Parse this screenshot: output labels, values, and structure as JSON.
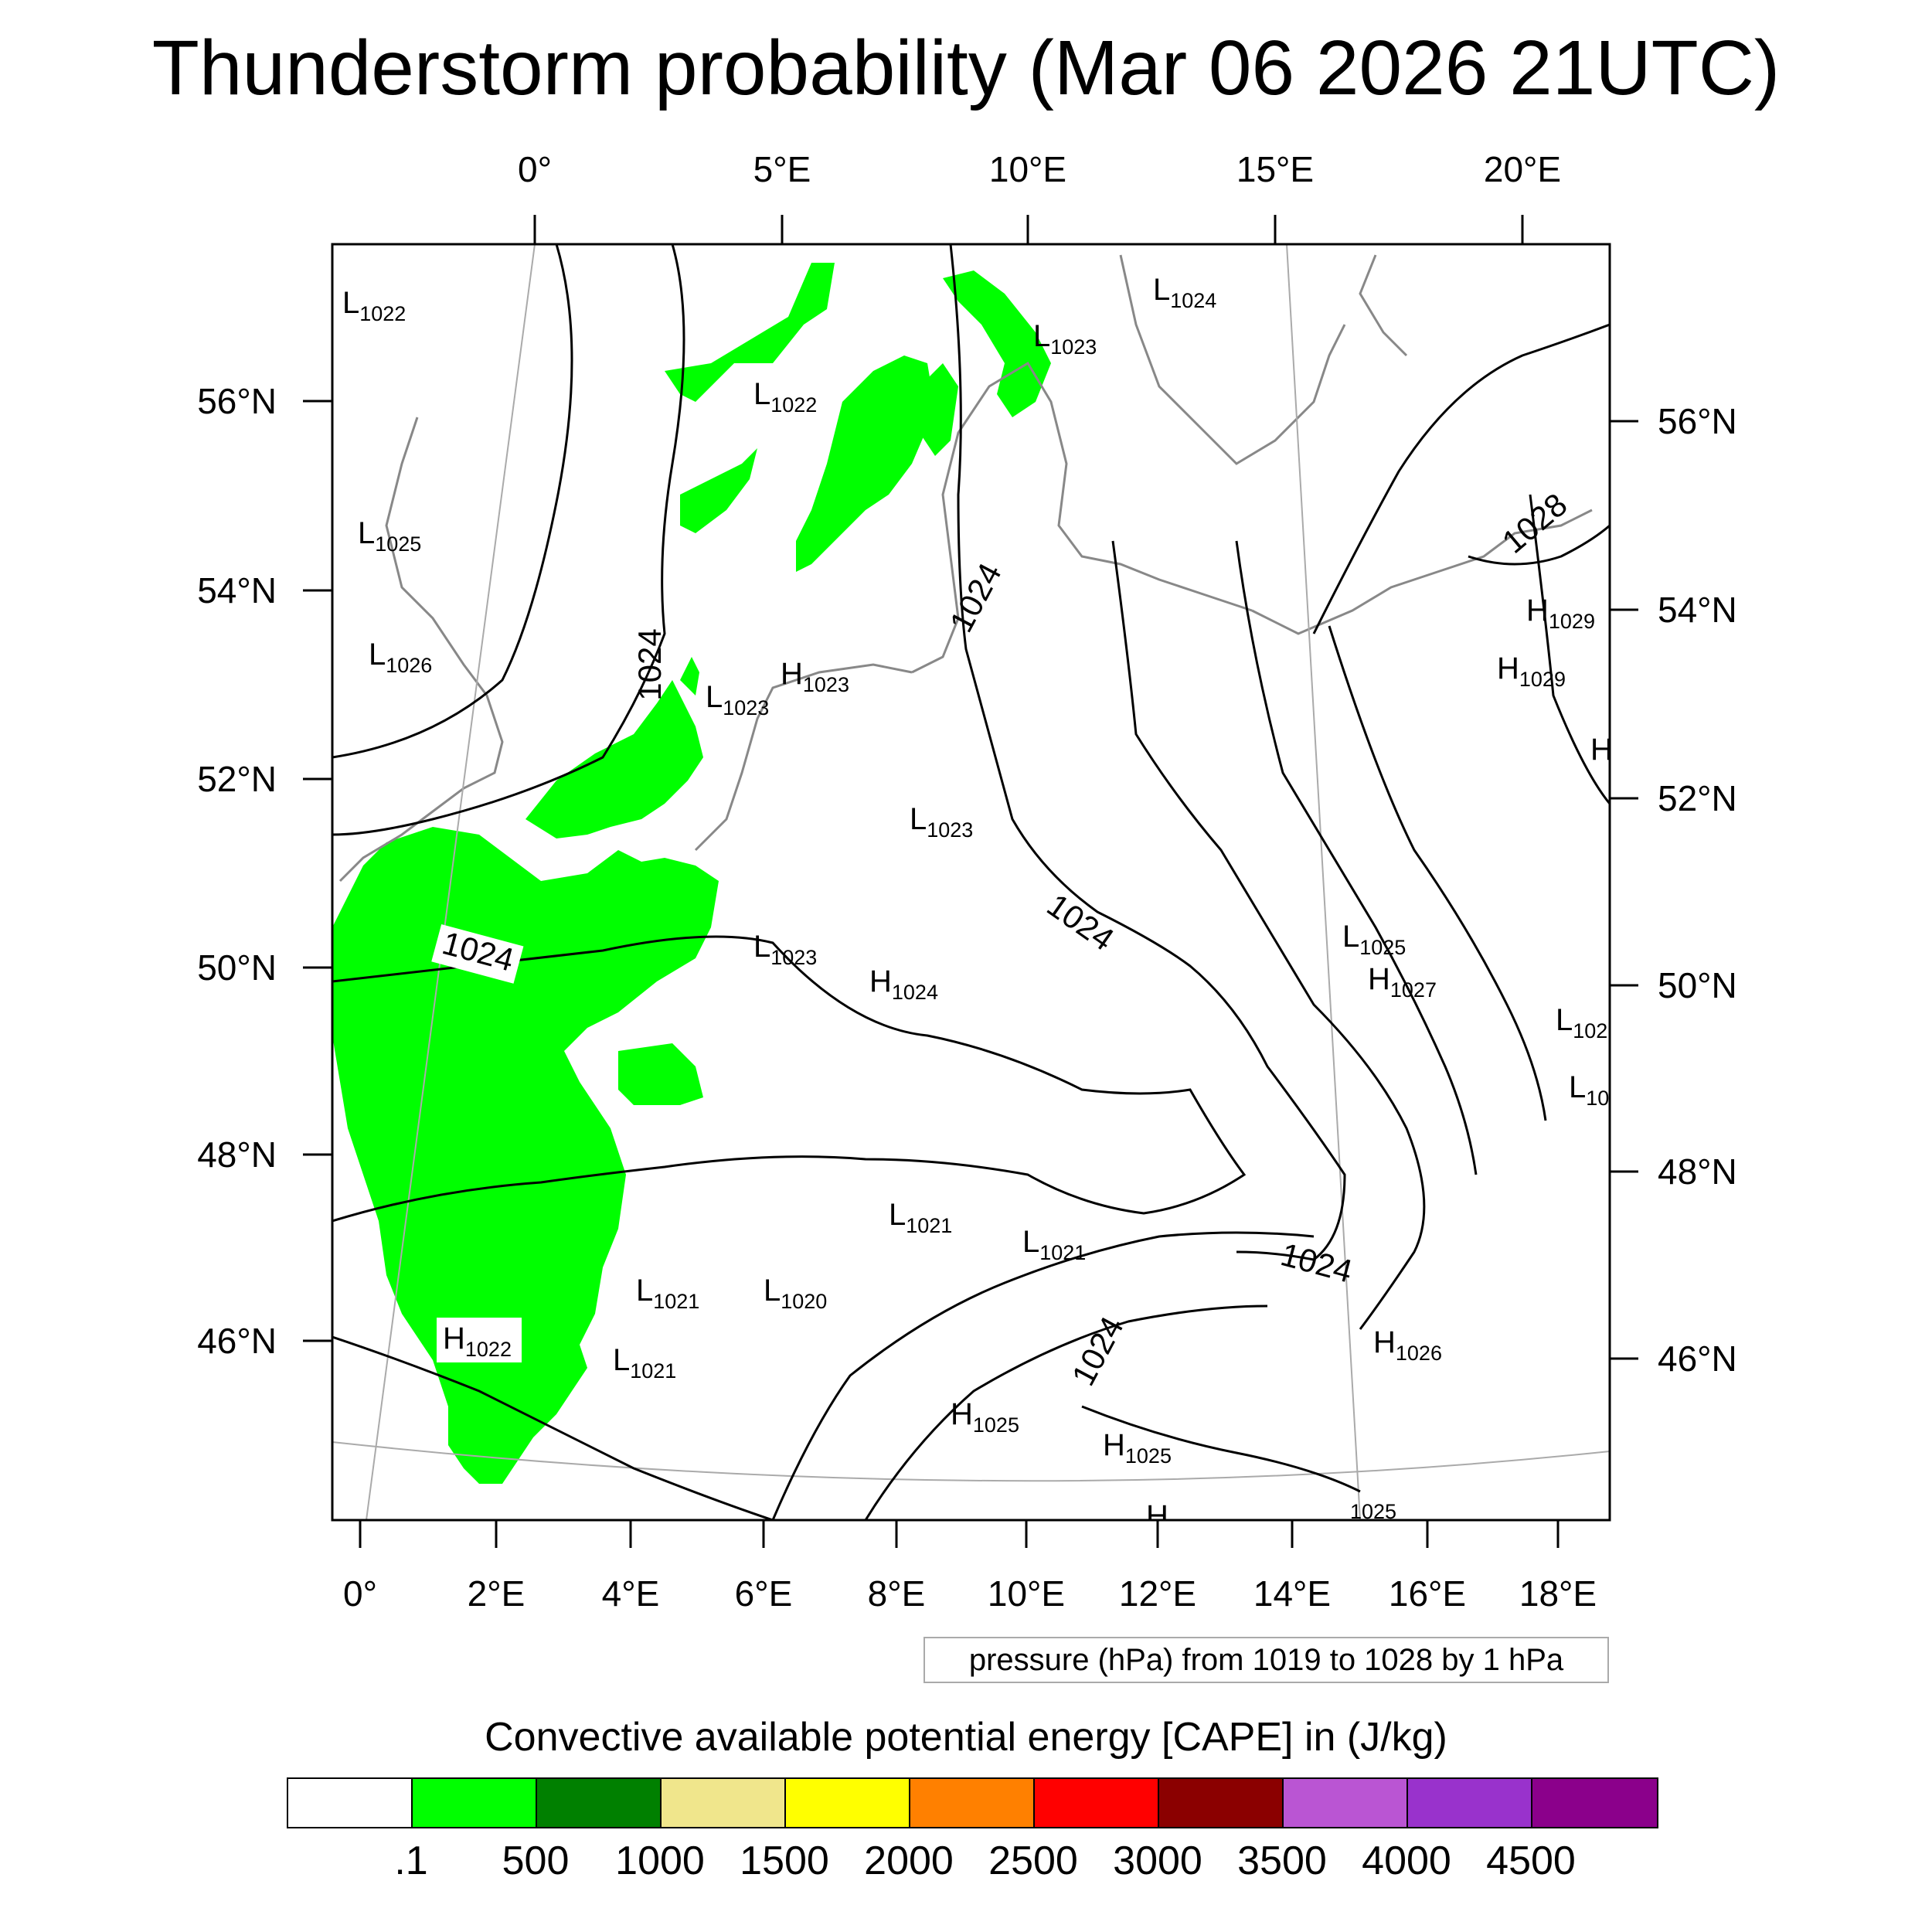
{
  "title": "Thunderstorm probability (Mar 06 2026 21UTC)",
  "map": {
    "top_lon_labels": [
      "0°",
      "5°E",
      "10°E",
      "15°E",
      "20°E"
    ],
    "bottom_lon_labels": [
      "0°",
      "2°E",
      "4°E",
      "6°E",
      "8°E",
      "10°E",
      "12°E",
      "14°E",
      "16°E",
      "18°E"
    ],
    "left_lat_labels": [
      "56°N",
      "54°N",
      "52°N",
      "50°N",
      "48°N",
      "46°N"
    ],
    "right_lat_labels": [
      "56°N",
      "54°N",
      "52°N",
      "50°N",
      "48°N",
      "46°N"
    ],
    "contour_labels": [
      "1024",
      "1024",
      "1024",
      "1024",
      "1024",
      "1024",
      "1028"
    ],
    "pressure_centers": [
      {
        "type": "L",
        "value": "1022"
      },
      {
        "type": "L",
        "value": "1024"
      },
      {
        "type": "L",
        "value": "1023"
      },
      {
        "type": "L",
        "value": "1022"
      },
      {
        "type": "L",
        "value": "1025"
      },
      {
        "type": "L",
        "value": "1026"
      },
      {
        "type": "H",
        "value": "1023"
      },
      {
        "type": "L",
        "value": "1023"
      },
      {
        "type": "H",
        "value": "1029"
      },
      {
        "type": "H",
        "value": "1029"
      },
      {
        "type": "L",
        "value": "1023"
      },
      {
        "type": "L",
        "value": "1023"
      },
      {
        "type": "H",
        "value": "1024"
      },
      {
        "type": "L",
        "value": "1025"
      },
      {
        "type": "H",
        "value": "1027"
      },
      {
        "type": "L",
        "value": "102"
      },
      {
        "type": "L",
        "value": "10"
      },
      {
        "type": "L",
        "value": "1021"
      },
      {
        "type": "L",
        "value": "1021"
      },
      {
        "type": "L",
        "value": "1021"
      },
      {
        "type": "L",
        "value": "1020"
      },
      {
        "type": "H",
        "value": "1022"
      },
      {
        "type": "L",
        "value": "1021"
      },
      {
        "type": "H",
        "value": "1026"
      },
      {
        "type": "H",
        "value": "1025"
      },
      {
        "type": "H",
        "value": "1025"
      },
      {
        "type": "H",
        "value": ""
      },
      {
        "type": "",
        "value": "1025"
      },
      {
        "type": "H",
        "value": ""
      }
    ],
    "colors": {
      "cape_fill": "#00ff00",
      "contour": "#000000",
      "coastline": "#888888",
      "graticule": "#aaaaaa"
    }
  },
  "pressure_note": "pressure (hPa) from 1019 to 1028 by 1 hPa",
  "legend": {
    "title": "Convective available potential energy [CAPE] in (J/kg)",
    "colors": [
      "#ffffff",
      "#00ff00",
      "#008000",
      "#f0e68c",
      "#ffff00",
      "#ff8000",
      "#ff0000",
      "#8b0000",
      "#ba55d3",
      "#9932cc",
      "#8b008b"
    ],
    "labels": [
      ".1",
      "500",
      "1000",
      "1500",
      "2000",
      "2500",
      "3000",
      "3500",
      "4000",
      "4500"
    ]
  }
}
